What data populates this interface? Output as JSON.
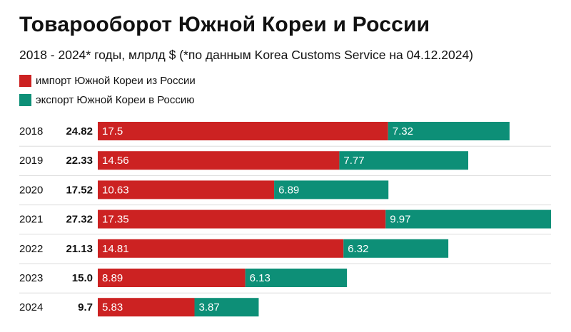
{
  "title": "Товарооборот Южной Кореи и России",
  "subtitle": "2018 - 2024* годы, млрлд $ (*по данным Korea Customs Service на 04.12.2024)",
  "colors": {
    "import": "#cc2222",
    "export": "#0d8f77",
    "separator": "#dddddd"
  },
  "chart_data": {
    "type": "bar",
    "orientation": "horizontal",
    "stacked": true,
    "title": "Товарооборот Южной Кореи и России",
    "subtitle": "2018 - 2024* годы, млрлд $ (*по данным Korea Customs Service на 04.12.2024)",
    "legend_position": "top-left",
    "categories": [
      "2018",
      "2019",
      "2020",
      "2021",
      "2022",
      "2023",
      "2024"
    ],
    "totals": [
      "24.82",
      "22.33",
      "17.52",
      "27.32",
      "21.13",
      "15.0",
      "9.7"
    ],
    "series": [
      {
        "name": "импорт Южной Кореи из России",
        "color": "#cc2222",
        "values": [
          17.5,
          14.56,
          10.63,
          17.35,
          14.81,
          8.89,
          5.83
        ],
        "labels": [
          "17.5",
          "14.56",
          "10.63",
          "17.35",
          "14.81",
          "8.89",
          "5.83"
        ]
      },
      {
        "name": "экспорт Южной Кореи в Россию",
        "color": "#0d8f77",
        "values": [
          7.32,
          7.77,
          6.89,
          9.97,
          6.32,
          6.13,
          3.87
        ],
        "labels": [
          "7.32",
          "7.77",
          "6.89",
          "9.97",
          "6.32",
          "6.13",
          "3.87"
        ]
      }
    ],
    "xlim": [
      0,
      27.32
    ],
    "grid": false
  }
}
